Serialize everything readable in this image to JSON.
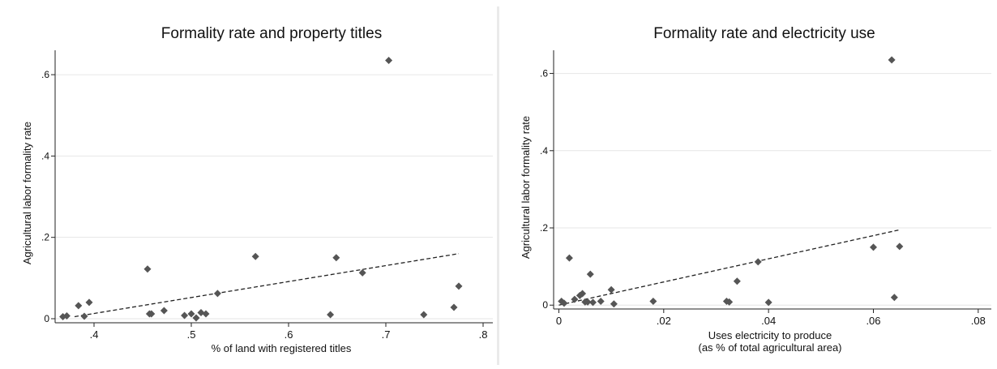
{
  "chart_data": [
    {
      "type": "scatter",
      "title": "Formality rate and property titles",
      "xlabel": "% of land with registered titles",
      "xlabel2": "",
      "ylabel": "Agricultural labor formality rate",
      "xlim": [
        0.36,
        0.81
      ],
      "ylim": [
        -0.01,
        0.66
      ],
      "x_ticks": [
        0.4,
        0.5,
        0.6,
        0.7,
        0.8
      ],
      "x_tick_labels": [
        ".4",
        ".5",
        ".6",
        ".7",
        ".8"
      ],
      "y_ticks": [
        0,
        0.2,
        0.4,
        0.6
      ],
      "y_tick_labels": [
        "0",
        ".2",
        ".4",
        ".6"
      ],
      "grid": true,
      "points": [
        [
          0.368,
          0.005
        ],
        [
          0.372,
          0.007
        ],
        [
          0.384,
          0.032
        ],
        [
          0.39,
          0.006
        ],
        [
          0.395,
          0.04
        ],
        [
          0.455,
          0.122
        ],
        [
          0.457,
          0.012
        ],
        [
          0.459,
          0.012
        ],
        [
          0.472,
          0.02
        ],
        [
          0.493,
          0.008
        ],
        [
          0.5,
          0.012
        ],
        [
          0.505,
          0.002
        ],
        [
          0.51,
          0.015
        ],
        [
          0.515,
          0.012
        ],
        [
          0.527,
          0.062
        ],
        [
          0.566,
          0.153
        ],
        [
          0.643,
          0.01
        ],
        [
          0.649,
          0.15
        ],
        [
          0.676,
          0.113
        ],
        [
          0.703,
          0.635
        ],
        [
          0.739,
          0.01
        ],
        [
          0.77,
          0.028
        ],
        [
          0.775,
          0.08
        ]
      ],
      "fit_line": [
        [
          0.38,
          0.005
        ],
        [
          0.775,
          0.16
        ]
      ]
    },
    {
      "type": "scatter",
      "title": "Formality rate and electricity use",
      "xlabel": "Uses electricity to produce",
      "xlabel2": "(as % of total agricultural area)",
      "ylabel": "Agricultural labor formality rate",
      "xlim": [
        -0.001,
        0.0825
      ],
      "ylim": [
        -0.01,
        0.66
      ],
      "x_ticks": [
        0,
        0.02,
        0.04,
        0.06,
        0.08
      ],
      "x_tick_labels": [
        "0",
        ".02",
        ".04",
        ".06",
        ".08"
      ],
      "y_ticks": [
        0,
        0.2,
        0.4,
        0.6
      ],
      "y_tick_labels": [
        "0",
        ".2",
        ".4",
        ".6"
      ],
      "grid": true,
      "points": [
        [
          0.0005,
          0.01
        ],
        [
          0.001,
          0.005
        ],
        [
          0.002,
          0.122
        ],
        [
          0.003,
          0.015
        ],
        [
          0.004,
          0.025
        ],
        [
          0.0045,
          0.03
        ],
        [
          0.005,
          0.008
        ],
        [
          0.0055,
          0.008
        ],
        [
          0.006,
          0.08
        ],
        [
          0.0065,
          0.007
        ],
        [
          0.008,
          0.01
        ],
        [
          0.01,
          0.04
        ],
        [
          0.0105,
          0.003
        ],
        [
          0.018,
          0.01
        ],
        [
          0.032,
          0.01
        ],
        [
          0.0325,
          0.008
        ],
        [
          0.034,
          0.062
        ],
        [
          0.038,
          0.112
        ],
        [
          0.04,
          0.007
        ],
        [
          0.06,
          0.15
        ],
        [
          0.0635,
          0.635
        ],
        [
          0.064,
          0.02
        ],
        [
          0.065,
          0.152
        ]
      ],
      "fit_line": [
        [
          0.0,
          0.0
        ],
        [
          0.065,
          0.195
        ]
      ]
    }
  ]
}
